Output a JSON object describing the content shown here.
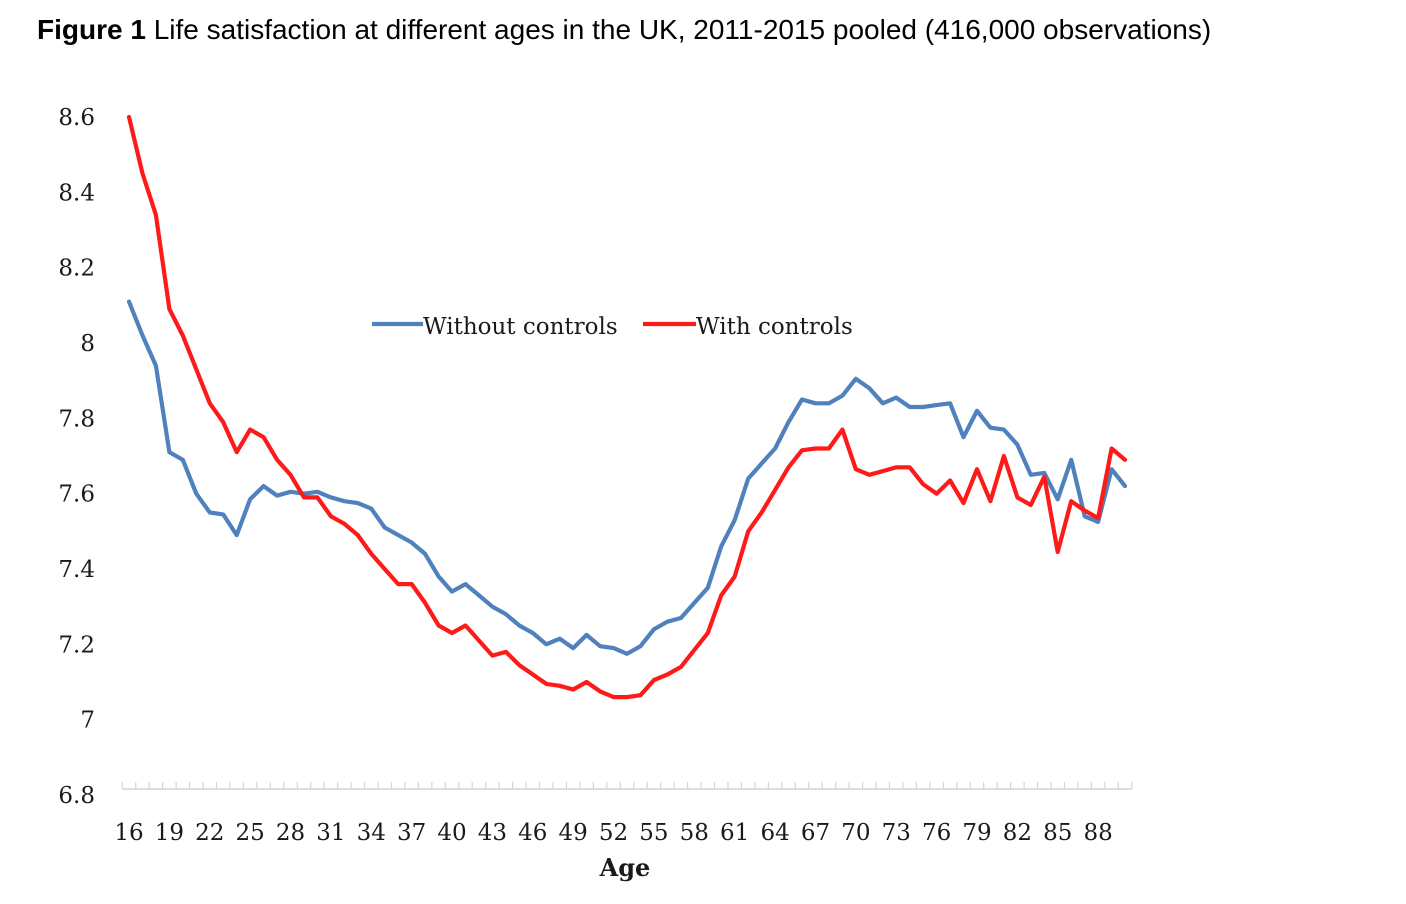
{
  "figure": {
    "label": "Figure 1",
    "caption": "Life satisfaction at different ages in the UK, 2011-2015 pooled (416,000 observations)"
  },
  "chart_data": {
    "type": "line",
    "title": "Figure 1 Life satisfaction at different ages in the UK, 2011-2015 pooled (416,000 observations)",
    "xlabel": "Age",
    "ylabel": "",
    "ylim": [
      6.8,
      8.6
    ],
    "yticks": [
      "6.8",
      "7",
      "7.2",
      "7.4",
      "7.6",
      "7.8",
      "8",
      "8.2",
      "8.4",
      "8.6"
    ],
    "xticks": [
      "16",
      "19",
      "22",
      "25",
      "28",
      "31",
      "34",
      "37",
      "40",
      "43",
      "46",
      "49",
      "52",
      "55",
      "58",
      "61",
      "64",
      "67",
      "70",
      "73",
      "76",
      "79",
      "82",
      "85",
      "88"
    ],
    "grid": false,
    "legend_position": "center-top",
    "x": [
      16,
      17,
      18,
      19,
      20,
      21,
      22,
      23,
      24,
      25,
      26,
      27,
      28,
      29,
      30,
      31,
      32,
      33,
      34,
      35,
      36,
      37,
      38,
      39,
      40,
      41,
      42,
      43,
      44,
      45,
      46,
      47,
      48,
      49,
      50,
      51,
      52,
      53,
      54,
      55,
      56,
      57,
      58,
      59,
      60,
      61,
      62,
      63,
      64,
      65,
      66,
      67,
      68,
      69,
      70,
      71,
      72,
      73,
      74,
      75,
      76,
      77,
      78,
      79,
      80,
      81,
      82,
      83,
      84,
      85,
      86,
      87,
      88,
      89,
      90
    ],
    "series": [
      {
        "name": "Without controls",
        "color": "#4f81bd",
        "values": [
          8.11,
          8.02,
          7.94,
          7.71,
          7.69,
          7.6,
          7.55,
          7.545,
          7.49,
          7.585,
          7.62,
          7.595,
          7.605,
          7.6,
          7.605,
          7.59,
          7.58,
          7.575,
          7.56,
          7.51,
          7.49,
          7.47,
          7.44,
          7.38,
          7.34,
          7.36,
          7.33,
          7.3,
          7.28,
          7.25,
          7.23,
          7.2,
          7.215,
          7.19,
          7.225,
          7.195,
          7.19,
          7.175,
          7.195,
          7.24,
          7.26,
          7.27,
          7.31,
          7.35,
          7.46,
          7.53,
          7.64,
          7.68,
          7.72,
          7.79,
          7.85,
          7.84,
          7.84,
          7.86,
          7.905,
          7.88,
          7.84,
          7.855,
          7.83,
          7.83,
          7.835,
          7.84,
          7.75,
          7.82,
          7.775,
          7.77,
          7.73,
          7.65,
          7.655,
          7.585,
          7.69,
          7.54,
          7.525,
          7.665,
          7.62
        ]
      },
      {
        "name": "With controls",
        "color": "#ff1a1a",
        "values": [
          8.6,
          8.45,
          8.34,
          8.09,
          8.02,
          7.93,
          7.84,
          7.79,
          7.71,
          7.77,
          7.75,
          7.69,
          7.65,
          7.59,
          7.59,
          7.54,
          7.52,
          7.49,
          7.44,
          7.4,
          7.36,
          7.36,
          7.31,
          7.25,
          7.23,
          7.25,
          7.21,
          7.17,
          7.18,
          7.145,
          7.12,
          7.095,
          7.09,
          7.08,
          7.1,
          7.075,
          7.06,
          7.06,
          7.065,
          7.105,
          7.12,
          7.14,
          7.185,
          7.23,
          7.33,
          7.38,
          7.5,
          7.55,
          7.61,
          7.67,
          7.715,
          7.72,
          7.72,
          7.77,
          7.665,
          7.65,
          7.66,
          7.67,
          7.67,
          7.625,
          7.6,
          7.635,
          7.575,
          7.665,
          7.58,
          7.7,
          7.59,
          7.57,
          7.645,
          7.445,
          7.58,
          7.555,
          7.535,
          7.72,
          7.69
        ]
      }
    ]
  }
}
